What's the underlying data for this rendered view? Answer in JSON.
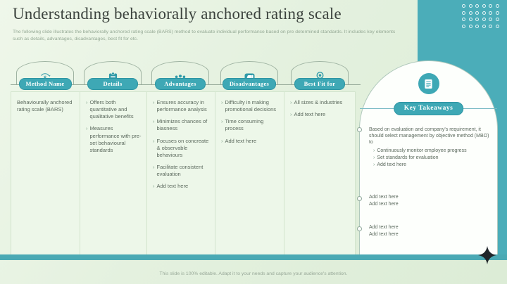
{
  "header": {
    "title": "Understanding behaviorally anchored rating scale",
    "subtitle": "The following slide illustrates the behaviorally anchored rating scale (BARS) method to evaluate individual performance based on pre determined standards. It includes key elements such as details, advantages, disadvantages, best fit for etc."
  },
  "table": {
    "columns": [
      {
        "header": "Method Name",
        "icon": "dollar-cycle-icon",
        "items": [
          "Behaviourally anchored rating scale (BARS)"
        ]
      },
      {
        "header": "Details",
        "icon": "clipboard-icon",
        "items": [
          "Offers both quantitative and qualitative benefits",
          "Measures performance with pre-set behavioural standards"
        ]
      },
      {
        "header": "Advantages",
        "icon": "team-icon",
        "items": [
          "Ensures accuracy in performance analysis",
          "Minimizes chances of biasness",
          "Focuses on concreate & observable behaviours",
          "Facilitate consistent evaluation",
          "Add text here"
        ]
      },
      {
        "header": "Disadvantages",
        "icon": "thumbs-down-icon",
        "items": [
          "Difficulty in making promotional decisions",
          "Time consuming process",
          "Add text here"
        ]
      },
      {
        "header": "Best Fit for",
        "icon": "award-icon",
        "items": [
          "All sizes & industries",
          "Add text here"
        ]
      }
    ]
  },
  "key_takeaways": {
    "title": "Key Takeaways",
    "icon": "document-icon",
    "intro": "Based on evaluation and company's requirement, it should select management by objective method (MBO) to",
    "bullets": [
      "Continuously monitor employee progress",
      "Set standards for evaluation",
      "Add text here"
    ],
    "group2": [
      "Add text here",
      "Add text here"
    ],
    "group3": [
      "Add text here",
      "Add text here"
    ]
  },
  "footer": {
    "note": "This slide is 100% editable. Adapt it to your needs and capture your audience's attention."
  },
  "colors": {
    "teal_accent": "#3ea8b5",
    "teal_block": "#4badb9",
    "background_green": "#e4f1df",
    "cell_green": "#edf7e9",
    "text_gray": "#5c6a5e",
    "star_black": "#20262a"
  }
}
